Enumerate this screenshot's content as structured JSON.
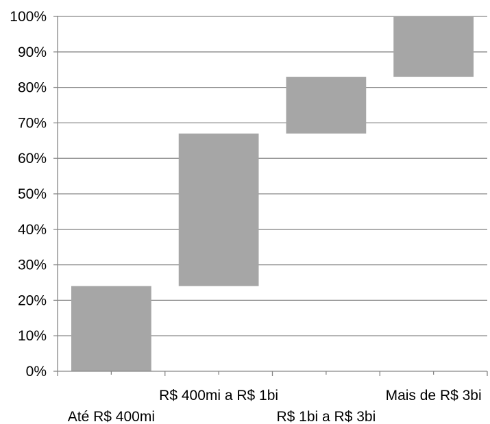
{
  "chart_data": {
    "type": "bar",
    "subtype": "floating-waterfall",
    "categories": [
      "Até R$ 400mi",
      "R$ 400mi a R$ 1bi",
      "R$ 1bi a R$ 3bi",
      "Mais de R$ 3bi"
    ],
    "ranges": [
      [
        0,
        24
      ],
      [
        24,
        67
      ],
      [
        67,
        83
      ],
      [
        83,
        100
      ]
    ],
    "y_ticks": [
      "0%",
      "10%",
      "20%",
      "30%",
      "40%",
      "50%",
      "60%",
      "70%",
      "80%",
      "90%",
      "100%"
    ],
    "ylim": [
      0,
      100
    ],
    "grid": true,
    "legend": "none",
    "title": "",
    "xlabel": "",
    "ylabel": "",
    "colors": {
      "bar": "#a6a6a6",
      "grid": "#868686",
      "axis": "#868686"
    }
  }
}
